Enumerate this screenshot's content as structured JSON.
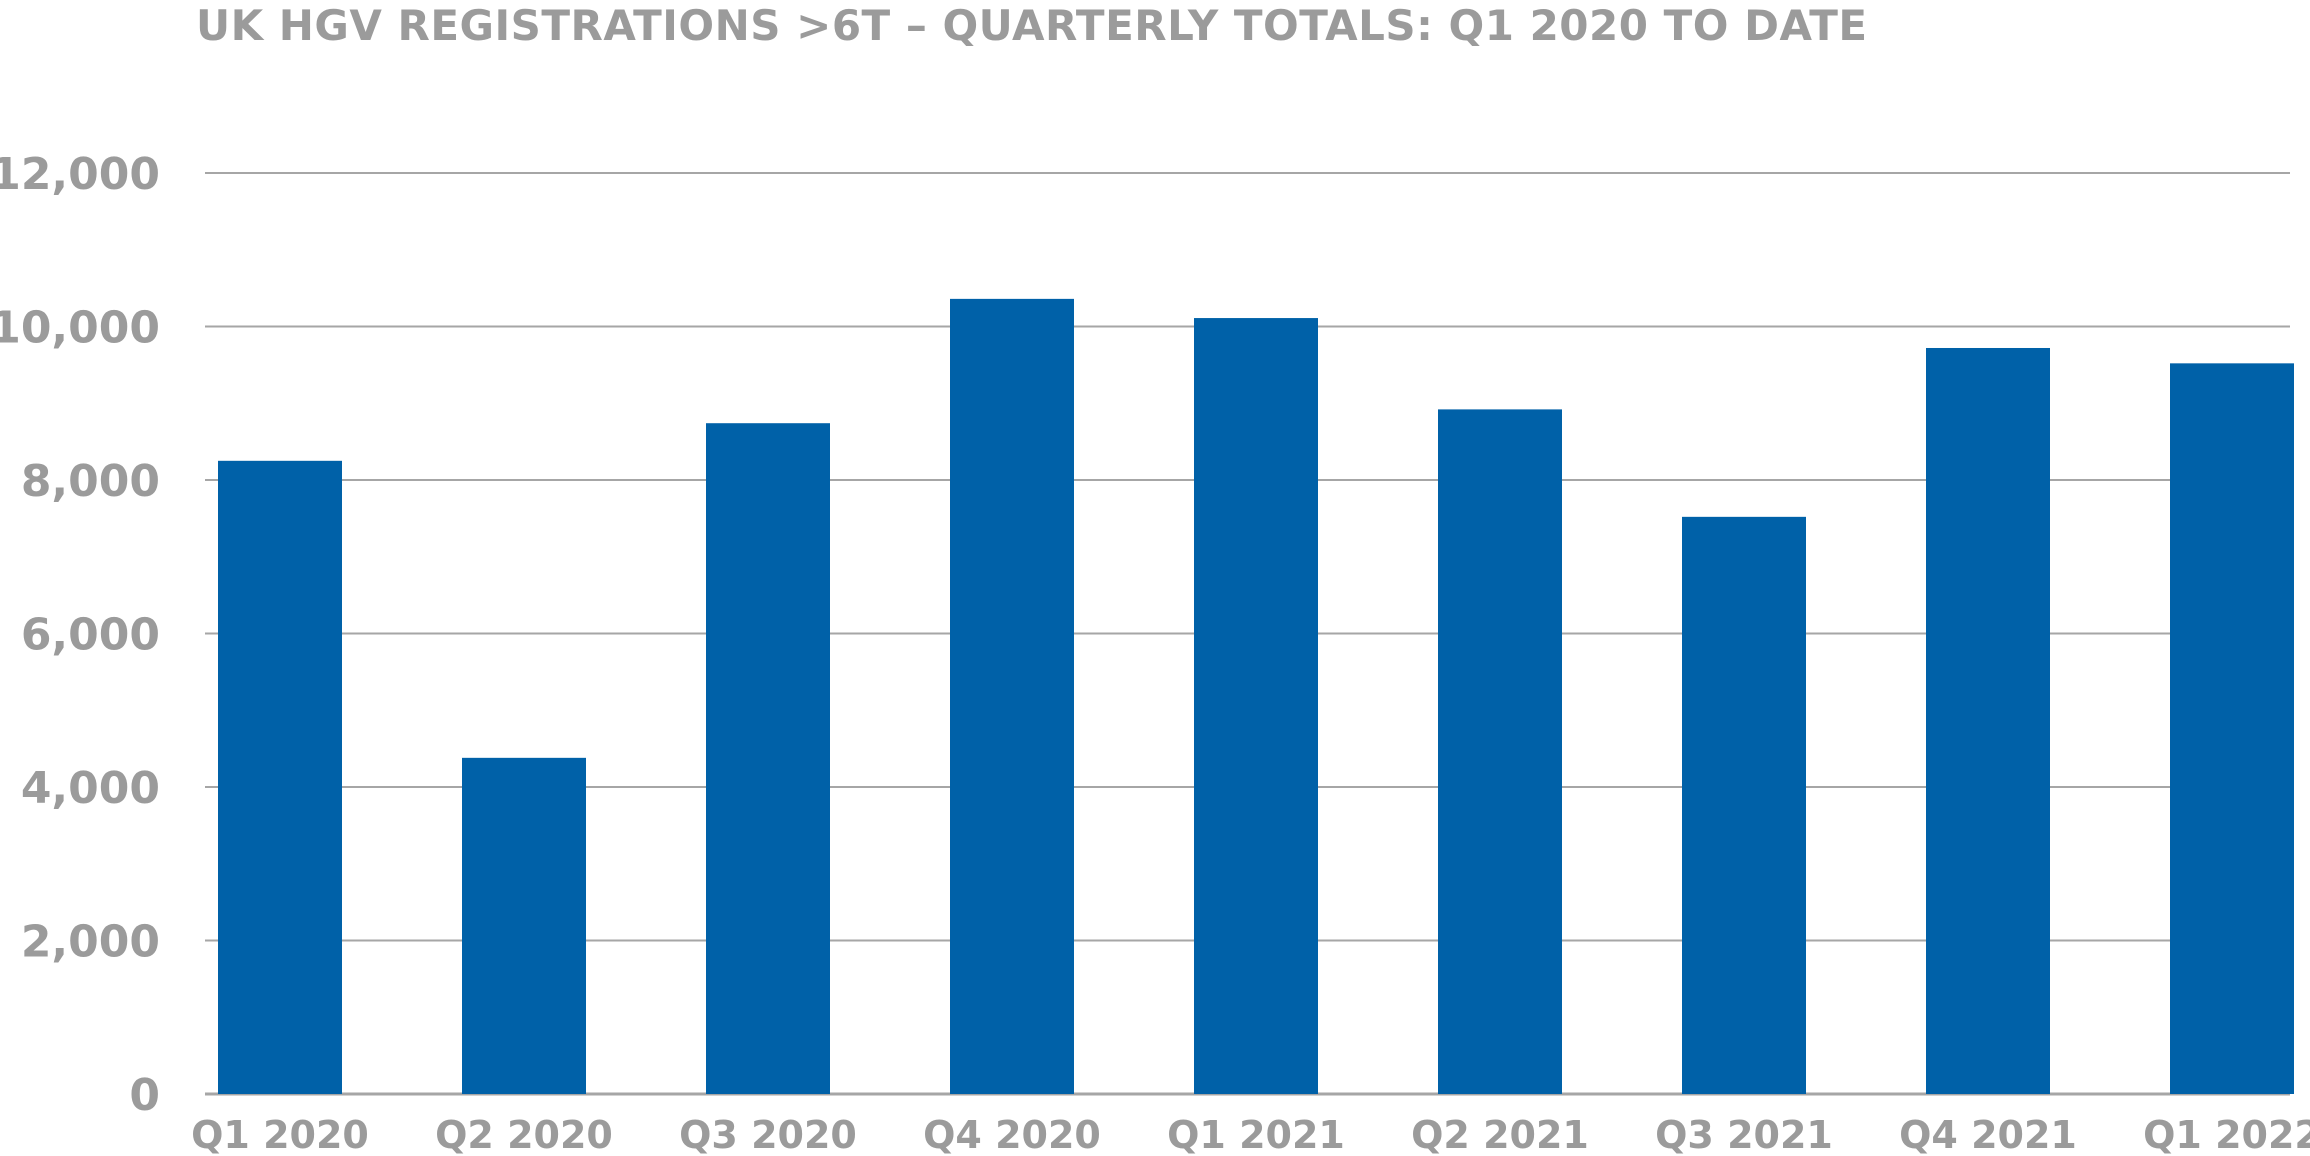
{
  "chart_data": {
    "type": "bar",
    "title": "UK HGV REGISTRATIONS >6T – QUARTERLY TOTALS: Q1 2020 TO DATE",
    "xlabel": "",
    "ylabel": "",
    "categories": [
      "Q1 2020",
      "Q2 2020",
      "Q3 2020",
      "Q4 2020",
      "Q1 2021",
      "Q2 2021",
      "Q3 2021",
      "Q4 2021",
      "Q1 2022"
    ],
    "values": [
      8250,
      4380,
      8740,
      10360,
      10110,
      8920,
      7520,
      9720,
      9520
    ],
    "ylim": [
      0,
      12000
    ],
    "yticks": [
      0,
      2000,
      4000,
      6000,
      8000,
      10000,
      12000
    ],
    "ytick_labels": [
      "0",
      "2,000",
      "4,000",
      "6,000",
      "8,000",
      "10,000",
      "12,000"
    ],
    "grid": true,
    "legend": "none",
    "colors": {
      "bar": "#0061a8",
      "grid": "#a6a6a6",
      "axis_text": "#9b9b9b",
      "title": "#9b9b9b"
    }
  }
}
